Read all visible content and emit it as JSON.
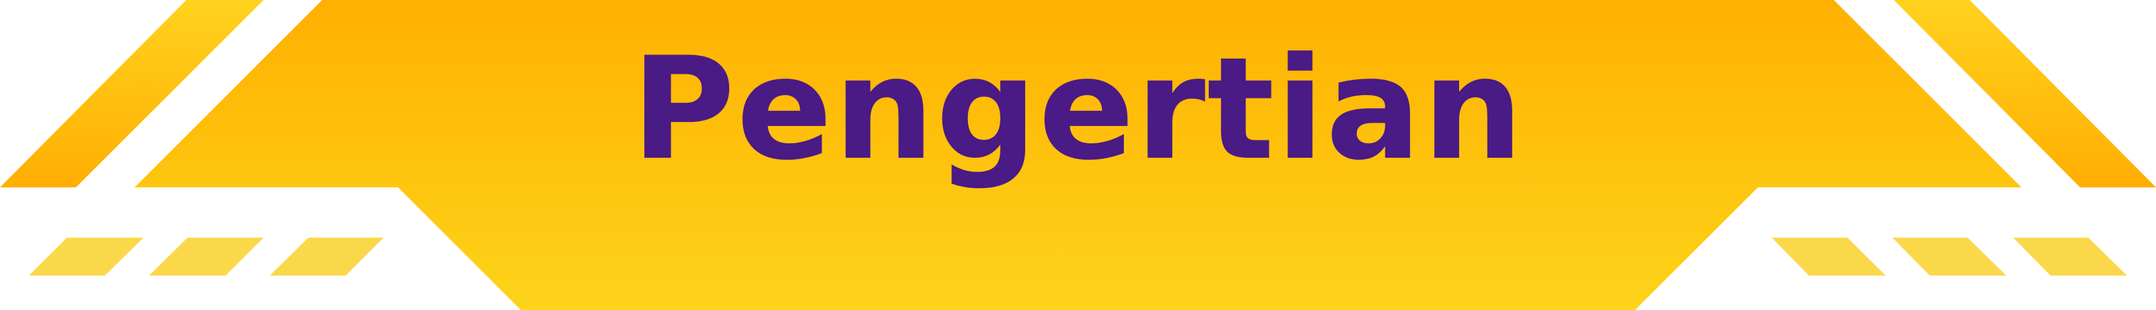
{
  "banner": {
    "title": "Pengertian",
    "colors": {
      "title_text": "#4a1a85",
      "panel_top": "#ffb000",
      "panel_bottom": "#fdd41a",
      "corner_top": "#ffd21e",
      "corner_bottom": "#ffae00",
      "stripe": "#fbd84a"
    }
  }
}
